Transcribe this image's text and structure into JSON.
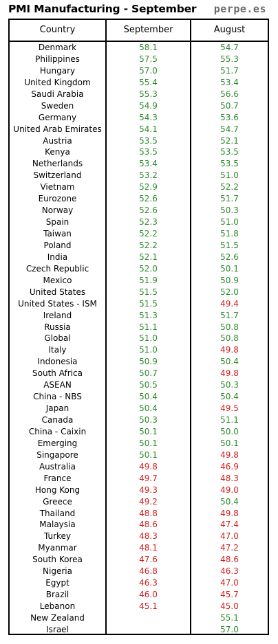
{
  "header": {
    "title": "PMI Manufacturing - September",
    "source": "perpe.es"
  },
  "table": {
    "columns": [
      "Country",
      "September",
      "August"
    ],
    "rows": [
      {
        "country": "Denmark",
        "sep": "58.1",
        "aug": "54.7"
      },
      {
        "country": "Philippines",
        "sep": "57.5",
        "aug": "55.3"
      },
      {
        "country": "Hungary",
        "sep": "57.0",
        "aug": "51.7"
      },
      {
        "country": "United Kingdom",
        "sep": "55.4",
        "aug": "53.4"
      },
      {
        "country": "Saudi Arabia",
        "sep": "55.3",
        "aug": "56.6"
      },
      {
        "country": "Sweden",
        "sep": "54.9",
        "aug": "50.7"
      },
      {
        "country": "Germany",
        "sep": "54.3",
        "aug": "53.6"
      },
      {
        "country": "United Arab Emirates",
        "sep": "54.1",
        "aug": "54.7"
      },
      {
        "country": "Austria",
        "sep": "53.5",
        "aug": "52.1"
      },
      {
        "country": "Kenya",
        "sep": "53.5",
        "aug": "53.5"
      },
      {
        "country": "Netherlands",
        "sep": "53.4",
        "aug": "53.5"
      },
      {
        "country": "Switzerland",
        "sep": "53.2",
        "aug": "51.0"
      },
      {
        "country": "Vietnam",
        "sep": "52.9",
        "aug": "52.2"
      },
      {
        "country": "Eurozone",
        "sep": "52.6",
        "aug": "51.7"
      },
      {
        "country": "Norway",
        "sep": "52.6",
        "aug": "50.3"
      },
      {
        "country": "Spain",
        "sep": "52.3",
        "aug": "51.0"
      },
      {
        "country": "Taiwan",
        "sep": "52.2",
        "aug": "51.8"
      },
      {
        "country": "Poland",
        "sep": "52.2",
        "aug": "51.5"
      },
      {
        "country": "India",
        "sep": "52.1",
        "aug": "52.6"
      },
      {
        "country": "Czech Republic",
        "sep": "52.0",
        "aug": "50.1"
      },
      {
        "country": "Mexico",
        "sep": "51.9",
        "aug": "50.9"
      },
      {
        "country": "United States",
        "sep": "51.5",
        "aug": "52.0"
      },
      {
        "country": "United States - ISM",
        "sep": "51.5",
        "aug": "49.4"
      },
      {
        "country": "Ireland",
        "sep": "51.3",
        "aug": "51.7"
      },
      {
        "country": "Russia",
        "sep": "51.1",
        "aug": "50.8"
      },
      {
        "country": "Global",
        "sep": "51.0",
        "aug": "50.8"
      },
      {
        "country": "Italy",
        "sep": "51.0",
        "aug": "49.8"
      },
      {
        "country": "Indonesia",
        "sep": "50.9",
        "aug": "50.4"
      },
      {
        "country": "South Africa",
        "sep": "50.7",
        "aug": "49.8"
      },
      {
        "country": "ASEAN",
        "sep": "50.5",
        "aug": "50.3"
      },
      {
        "country": "China - NBS",
        "sep": "50.4",
        "aug": "50.4"
      },
      {
        "country": "Japan",
        "sep": "50.4",
        "aug": "49.5"
      },
      {
        "country": "Canada",
        "sep": "50.3",
        "aug": "51.1"
      },
      {
        "country": "China - Caixin",
        "sep": "50.1",
        "aug": "50.0"
      },
      {
        "country": "Emerging",
        "sep": "50.1",
        "aug": "50.1"
      },
      {
        "country": "Singapore",
        "sep": "50.1",
        "aug": "49.8"
      },
      {
        "country": "Australia",
        "sep": "49.8",
        "aug": "46.9"
      },
      {
        "country": "France",
        "sep": "49.7",
        "aug": "48.3"
      },
      {
        "country": "Hong Kong",
        "sep": "49.3",
        "aug": "49.0"
      },
      {
        "country": "Greece",
        "sep": "49.2",
        "aug": "50.4"
      },
      {
        "country": "Thailand",
        "sep": "48.8",
        "aug": "49.8"
      },
      {
        "country": "Malaysia",
        "sep": "48.6",
        "aug": "47.4"
      },
      {
        "country": "Turkey",
        "sep": "48.3",
        "aug": "47.0"
      },
      {
        "country": "Myanmar",
        "sep": "48.1",
        "aug": "47.2"
      },
      {
        "country": "South Korea",
        "sep": "47.6",
        "aug": "48.6"
      },
      {
        "country": "Nigeria",
        "sep": "46.8",
        "aug": "46.3"
      },
      {
        "country": "Egypt",
        "sep": "46.3",
        "aug": "47.0"
      },
      {
        "country": "Brazil",
        "sep": "46.0",
        "aug": "45.7"
      },
      {
        "country": "Lebanon",
        "sep": "45.1",
        "aug": "45.0"
      },
      {
        "country": "New Zealand",
        "sep": "",
        "aug": "55.1"
      },
      {
        "country": "Israel",
        "sep": "",
        "aug": "57.0"
      }
    ]
  },
  "colors": {
    "above_50": "#2e8b2e",
    "below_50": "#d42020",
    "source_text": "#6b6b6b",
    "border": "#000000"
  }
}
